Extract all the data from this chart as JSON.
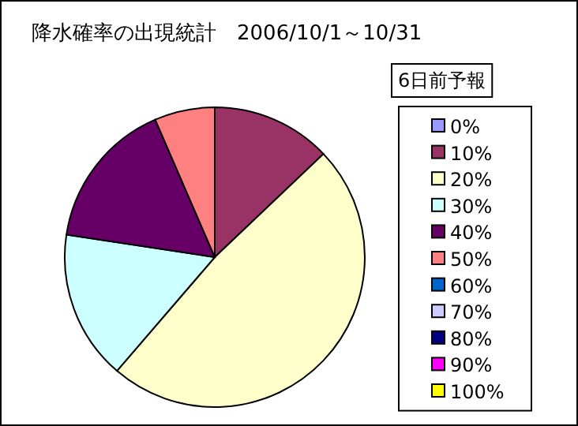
{
  "chart_data": {
    "type": "pie",
    "title": "降水確率の出現統計　2006/10/1～10/31",
    "legend_title": "6日前予報",
    "legend": "right",
    "categories": [
      "0%",
      "10%",
      "20%",
      "30%",
      "40%",
      "50%",
      "60%",
      "70%",
      "80%",
      "90%",
      "100%"
    ],
    "values": [
      0,
      12.9,
      48.4,
      16.1,
      16.1,
      6.5,
      0,
      0,
      0,
      0,
      0
    ],
    "colors": [
      "#9999ff",
      "#993366",
      "#ffffcc",
      "#ccffff",
      "#660066",
      "#ff8080",
      "#0066cc",
      "#ccccff",
      "#000080",
      "#ff00ff",
      "#ffff00"
    ]
  }
}
